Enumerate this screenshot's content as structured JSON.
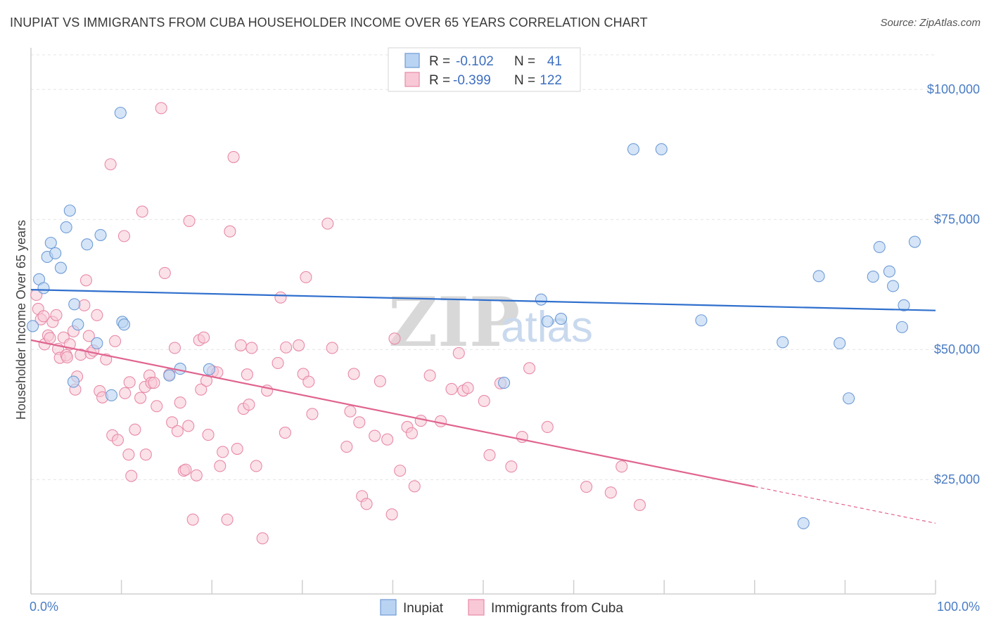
{
  "title": "INUPIAT VS IMMIGRANTS FROM CUBA HOUSEHOLDER INCOME OVER 65 YEARS CORRELATION CHART",
  "source": "Source: ZipAtlas.com",
  "watermark": {
    "zip": "ZIP",
    "atlas": "atlas"
  },
  "legend": {
    "rows": [
      {
        "r_label": "R =",
        "r_value": "-0.102",
        "n_label": "N =",
        "n_value": "41",
        "color": "#aecbf0",
        "stroke": "#6e9bd6"
      },
      {
        "r_label": "R =",
        "r_value": "-0.399",
        "n_label": "N =",
        "n_value": "122",
        "color": "#f7bccd",
        "stroke": "#e58aa6"
      }
    ]
  },
  "colors": {
    "inupiat_fill": "#b9d3f2",
    "inupiat_stroke": "#6e9bd6",
    "inupiat_line": "#2f6fcd",
    "cuba_fill": "#f8c8d6",
    "cuba_stroke": "#e88aa8",
    "cuba_line": "#e0648f"
  },
  "chart_data": {
    "type": "scatter",
    "xlabel": "",
    "ylabel": "Householder Income Over 65 years",
    "xlim": [
      0,
      100
    ],
    "ylim": [
      3000,
      108000
    ],
    "x_tick_labels": [
      "0.0%",
      "100.0%"
    ],
    "y_ticks": [
      25000,
      50000,
      75000,
      100000
    ],
    "y_tick_labels": [
      "$25,000",
      "$50,000",
      "$75,000",
      "$100,000"
    ],
    "grid": true,
    "legend_position": "top-center",
    "series": [
      {
        "name": "Inupiat",
        "points": [
          [
            0.2,
            54500
          ],
          [
            0.9,
            63500
          ],
          [
            1.4,
            61800
          ],
          [
            1.8,
            67800
          ],
          [
            2.2,
            70500
          ],
          [
            2.7,
            68500
          ],
          [
            3.3,
            65700
          ],
          [
            3.9,
            73500
          ],
          [
            4.3,
            76700
          ],
          [
            4.7,
            43800
          ],
          [
            4.8,
            58700
          ],
          [
            5.2,
            54800
          ],
          [
            6.2,
            70200
          ],
          [
            7.3,
            51200
          ],
          [
            8.9,
            41200
          ],
          [
            7.7,
            72000
          ],
          [
            9.9,
            95500
          ],
          [
            10.1,
            55300
          ],
          [
            10.3,
            54800
          ],
          [
            15.3,
            45000
          ],
          [
            16.5,
            46300
          ],
          [
            19.7,
            46200
          ],
          [
            52.3,
            43600
          ],
          [
            56.4,
            59600
          ],
          [
            57.1,
            55400
          ],
          [
            58.6,
            55900
          ],
          [
            66.6,
            88500
          ],
          [
            69.7,
            88500
          ],
          [
            74.1,
            55600
          ],
          [
            83.1,
            51400
          ],
          [
            85.4,
            16600
          ],
          [
            87.1,
            64100
          ],
          [
            89.4,
            51200
          ],
          [
            90.4,
            40600
          ],
          [
            93.1,
            64000
          ],
          [
            93.8,
            69700
          ],
          [
            94.9,
            65000
          ],
          [
            95.3,
            62200
          ],
          [
            96.3,
            54300
          ],
          [
            96.5,
            58500
          ],
          [
            97.7,
            70700
          ]
        ],
        "trend": {
          "x": [
            0,
            100
          ],
          "y": [
            61500,
            57500
          ]
        }
      },
      {
        "name": "Immigrants from Cuba",
        "points": [
          [
            0.6,
            60500
          ],
          [
            0.8,
            57800
          ],
          [
            1.1,
            55800
          ],
          [
            1.4,
            56400
          ],
          [
            1.5,
            51000
          ],
          [
            1.9,
            52700
          ],
          [
            2.1,
            52200
          ],
          [
            2.4,
            55300
          ],
          [
            2.8,
            56600
          ],
          [
            3.0,
            50100
          ],
          [
            3.2,
            48400
          ],
          [
            3.6,
            52300
          ],
          [
            3.9,
            48900
          ],
          [
            4.0,
            48500
          ],
          [
            4.3,
            51000
          ],
          [
            4.7,
            53500
          ],
          [
            4.9,
            42300
          ],
          [
            5.1,
            44800
          ],
          [
            5.5,
            49000
          ],
          [
            5.9,
            58500
          ],
          [
            6.1,
            63300
          ],
          [
            6.4,
            52600
          ],
          [
            6.6,
            49300
          ],
          [
            6.9,
            49800
          ],
          [
            7.3,
            56600
          ],
          [
            7.6,
            42000
          ],
          [
            7.9,
            40800
          ],
          [
            8.3,
            48100
          ],
          [
            8.8,
            85600
          ],
          [
            9.0,
            33500
          ],
          [
            9.3,
            51600
          ],
          [
            9.6,
            32600
          ],
          [
            10.3,
            71800
          ],
          [
            10.4,
            41600
          ],
          [
            10.8,
            29800
          ],
          [
            10.9,
            43700
          ],
          [
            11.1,
            25700
          ],
          [
            11.5,
            34600
          ],
          [
            12.1,
            40700
          ],
          [
            12.3,
            76500
          ],
          [
            12.6,
            42800
          ],
          [
            12.7,
            29800
          ],
          [
            13.1,
            45000
          ],
          [
            13.3,
            43600
          ],
          [
            13.6,
            43600
          ],
          [
            13.9,
            39100
          ],
          [
            14.4,
            96400
          ],
          [
            14.8,
            64700
          ],
          [
            15.3,
            45200
          ],
          [
            15.6,
            36000
          ],
          [
            15.9,
            50300
          ],
          [
            16.2,
            34300
          ],
          [
            16.5,
            39800
          ],
          [
            16.9,
            26700
          ],
          [
            17.1,
            26900
          ],
          [
            17.4,
            35300
          ],
          [
            17.5,
            74700
          ],
          [
            17.9,
            17300
          ],
          [
            18.3,
            25800
          ],
          [
            18.6,
            51800
          ],
          [
            18.8,
            42300
          ],
          [
            19.1,
            52300
          ],
          [
            19.4,
            44000
          ],
          [
            19.6,
            33600
          ],
          [
            20.1,
            45800
          ],
          [
            20.6,
            45600
          ],
          [
            20.9,
            27600
          ],
          [
            21.2,
            30300
          ],
          [
            21.7,
            17300
          ],
          [
            22.0,
            72700
          ],
          [
            22.4,
            87000
          ],
          [
            22.8,
            30900
          ],
          [
            23.2,
            50800
          ],
          [
            23.5,
            38600
          ],
          [
            23.9,
            45200
          ],
          [
            24.1,
            39400
          ],
          [
            24.4,
            50300
          ],
          [
            24.9,
            27600
          ],
          [
            25.6,
            13700
          ],
          [
            26.1,
            42100
          ],
          [
            27.3,
            47400
          ],
          [
            27.6,
            60000
          ],
          [
            28.1,
            34000
          ],
          [
            28.2,
            50400
          ],
          [
            29.6,
            50800
          ],
          [
            30.1,
            45300
          ],
          [
            30.4,
            63900
          ],
          [
            30.7,
            43800
          ],
          [
            31.1,
            37600
          ],
          [
            32.8,
            74200
          ],
          [
            33.3,
            50300
          ],
          [
            34.9,
            31300
          ],
          [
            35.3,
            38100
          ],
          [
            35.7,
            45300
          ],
          [
            36.3,
            36000
          ],
          [
            36.6,
            21800
          ],
          [
            37.1,
            20300
          ],
          [
            38.0,
            33400
          ],
          [
            38.6,
            43900
          ],
          [
            39.4,
            32700
          ],
          [
            39.9,
            18300
          ],
          [
            40.2,
            52100
          ],
          [
            40.8,
            26700
          ],
          [
            41.6,
            35100
          ],
          [
            42.1,
            33900
          ],
          [
            42.4,
            23700
          ],
          [
            43.1,
            36300
          ],
          [
            44.1,
            45000
          ],
          [
            45.3,
            36200
          ],
          [
            46.5,
            42400
          ],
          [
            47.3,
            49300
          ],
          [
            47.8,
            42100
          ],
          [
            48.3,
            42600
          ],
          [
            50.1,
            40100
          ],
          [
            50.7,
            29700
          ],
          [
            51.9,
            43500
          ],
          [
            53.1,
            27500
          ],
          [
            54.3,
            33200
          ],
          [
            55.1,
            46400
          ],
          [
            57.1,
            35100
          ],
          [
            61.4,
            23600
          ],
          [
            64.1,
            22500
          ],
          [
            65.3,
            27500
          ],
          [
            67.3,
            20100
          ]
        ],
        "trend": {
          "x": [
            0,
            100
          ],
          "y": [
            51800,
            16600
          ]
        },
        "trend_dashed_from_x": 80
      }
    ]
  },
  "bottom_legend": [
    {
      "label": "Inupiat"
    },
    {
      "label": "Immigrants from Cuba"
    }
  ]
}
